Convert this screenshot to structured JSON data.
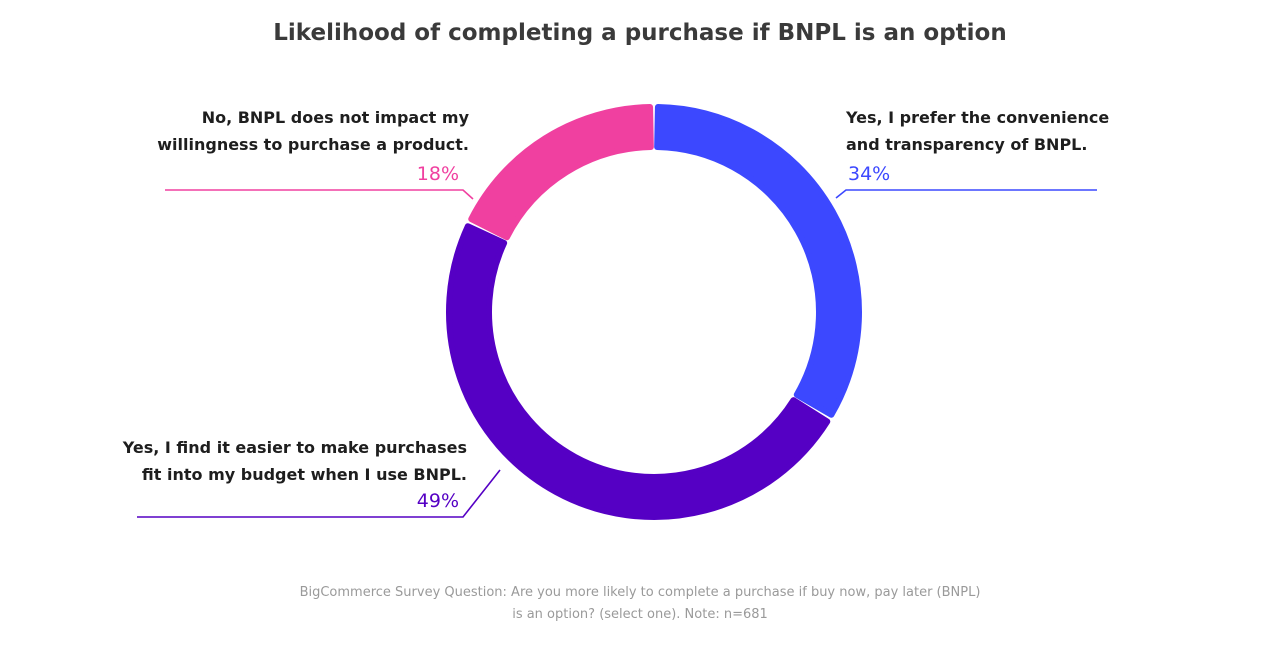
{
  "chart_data": {
    "type": "pie",
    "variant": "donut",
    "title": "Likelihood of completing a purchase if BNPL is an option",
    "categories": [
      "Yes, I prefer the convenience and transparency of BNPL.",
      "Yes, I find it easier to make purchases fit into my budget when I use BNPL.",
      "No, BNPL does not impact my willingness to purchase a product."
    ],
    "values": [
      34,
      49,
      18
    ],
    "value_labels": [
      "34%",
      "49%",
      "18%"
    ],
    "colors": [
      "#3c48ff",
      "#5500c4",
      "#f040a0"
    ],
    "label_lines": [
      [
        "Yes, I prefer the convenience",
        "and transparency of BNPL."
      ],
      [
        "Yes, I find it easier to make purchases",
        "fit into my budget when I use BNPL."
      ],
      [
        "No, BNPL does not impact my",
        "willingness to purchase a product."
      ]
    ],
    "note_lines": [
      "BigCommerce Survey Question: Are you more likely to complete a purchase if buy now, pay later (BNPL)",
      "is an option? (select one). Note: n=681"
    ]
  }
}
